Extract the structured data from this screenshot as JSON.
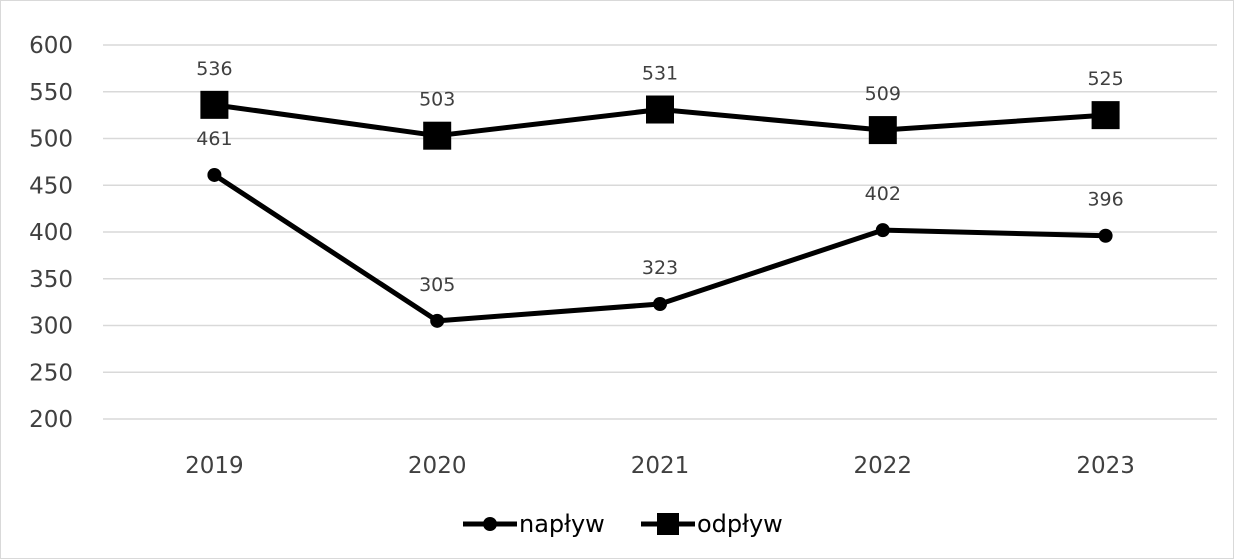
{
  "chart_data": {
    "type": "line",
    "title": "",
    "xlabel": "",
    "ylabel": "",
    "categories": [
      "2019",
      "2020",
      "2021",
      "2022",
      "2023"
    ],
    "ylim": [
      200,
      600
    ],
    "yticks": [
      200,
      250,
      300,
      350,
      400,
      450,
      500,
      550,
      600
    ],
    "grid": true,
    "legend_position": "bottom",
    "series": [
      {
        "name": "napływ",
        "values": [
          461,
          305,
          323,
          402,
          396
        ],
        "marker": "circle",
        "color": "#000000"
      },
      {
        "name": "odpływ",
        "values": [
          536,
          503,
          531,
          509,
          525
        ],
        "marker": "square",
        "color": "#000000"
      }
    ]
  },
  "colors": {
    "grid": "#d9d9d9",
    "text": "#404040",
    "line": "#000000"
  }
}
